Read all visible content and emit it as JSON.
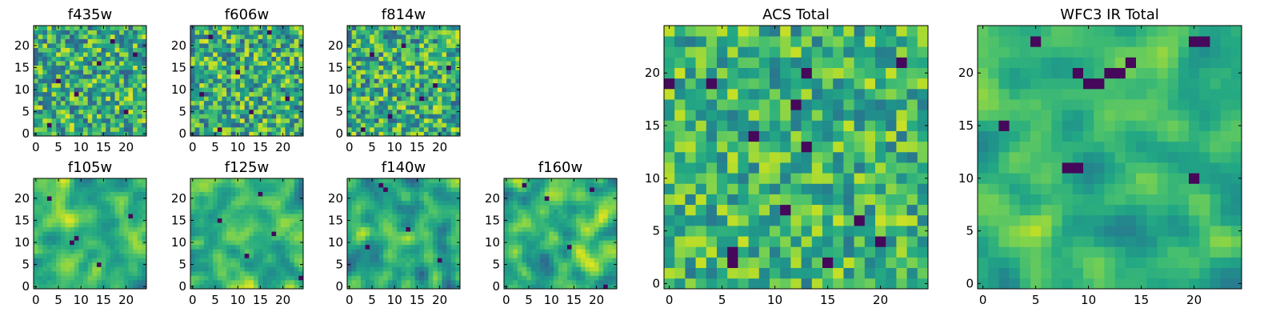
{
  "chart_data": [
    {
      "type": "heatmap",
      "title": "f435w",
      "grid_size": 25,
      "x_ticks": [
        0,
        5,
        10,
        15,
        20
      ],
      "y_ticks": [
        0,
        5,
        10,
        15,
        20
      ],
      "xlim": [
        0,
        25
      ],
      "ylim": [
        0,
        25
      ],
      "colormap": "viridis",
      "seed": 11,
      "smoothness": 0.05,
      "value_range": [
        0.3,
        0.95
      ],
      "dark_pixels": [
        [
          3,
          2
        ],
        [
          9,
          9
        ],
        [
          20,
          5
        ],
        [
          14,
          16
        ],
        [
          5,
          12
        ],
        [
          22,
          18
        ],
        [
          17,
          21
        ]
      ]
    },
    {
      "type": "heatmap",
      "title": "f606w",
      "grid_size": 25,
      "x_ticks": [
        0,
        5,
        10,
        15,
        20
      ],
      "y_ticks": [
        0,
        5,
        10,
        15,
        20
      ],
      "xlim": [
        0,
        25
      ],
      "ylim": [
        0,
        25
      ],
      "colormap": "viridis",
      "seed": 23,
      "smoothness": 0.05,
      "value_range": [
        0.3,
        0.95
      ],
      "dark_pixels": [
        [
          4,
          22
        ],
        [
          17,
          23
        ],
        [
          10,
          14
        ],
        [
          6,
          1
        ],
        [
          21,
          8
        ],
        [
          13,
          5
        ],
        [
          2,
          9
        ]
      ]
    },
    {
      "type": "heatmap",
      "title": "f814w",
      "grid_size": 25,
      "x_ticks": [
        0,
        5,
        10,
        15,
        20
      ],
      "y_ticks": [
        0,
        5,
        10,
        15,
        20
      ],
      "xlim": [
        0,
        25
      ],
      "ylim": [
        0,
        25
      ],
      "colormap": "viridis",
      "seed": 37,
      "smoothness": 0.05,
      "value_range": [
        0.3,
        0.95
      ],
      "dark_pixels": [
        [
          5,
          18
        ],
        [
          12,
          20
        ],
        [
          16,
          8
        ],
        [
          3,
          1
        ],
        [
          22,
          15
        ],
        [
          9,
          4
        ],
        [
          19,
          11
        ]
      ]
    },
    {
      "type": "heatmap",
      "title": "f105w",
      "grid_size": 25,
      "x_ticks": [
        0,
        5,
        10,
        15,
        20
      ],
      "y_ticks": [
        0,
        5,
        10,
        15,
        20
      ],
      "xlim": [
        0,
        25
      ],
      "ylim": [
        0,
        25
      ],
      "colormap": "viridis",
      "seed": 41,
      "smoothness": 0.45,
      "value_range": [
        0.35,
        0.95
      ],
      "dark_pixels": [
        [
          8,
          10
        ],
        [
          9,
          11
        ],
        [
          14,
          5
        ],
        [
          21,
          16
        ],
        [
          3,
          20
        ]
      ]
    },
    {
      "type": "heatmap",
      "title": "f125w",
      "grid_size": 25,
      "x_ticks": [
        0,
        5,
        10,
        15,
        20
      ],
      "y_ticks": [
        0,
        5,
        10,
        15,
        20
      ],
      "xlim": [
        0,
        25
      ],
      "ylim": [
        0,
        25
      ],
      "colormap": "viridis",
      "seed": 53,
      "smoothness": 0.45,
      "value_range": [
        0.35,
        0.95
      ],
      "dark_pixels": [
        [
          18,
          12
        ],
        [
          24,
          2
        ],
        [
          6,
          15
        ],
        [
          12,
          7
        ],
        [
          15,
          21
        ]
      ]
    },
    {
      "type": "heatmap",
      "title": "f140w",
      "grid_size": 25,
      "x_ticks": [
        0,
        5,
        10,
        15,
        20
      ],
      "y_ticks": [
        0,
        5,
        10,
        15,
        20
      ],
      "xlim": [
        0,
        25
      ],
      "ylim": [
        0,
        25
      ],
      "colormap": "viridis",
      "seed": 67,
      "smoothness": 0.5,
      "value_range": [
        0.3,
        0.9
      ],
      "dark_pixels": [
        [
          7,
          23
        ],
        [
          8,
          22
        ],
        [
          13,
          13
        ],
        [
          20,
          6
        ],
        [
          4,
          9
        ]
      ]
    },
    {
      "type": "heatmap",
      "title": "f160w",
      "grid_size": 25,
      "x_ticks": [
        0,
        5,
        10,
        15,
        20
      ],
      "y_ticks": [
        0,
        5,
        10,
        15,
        20
      ],
      "xlim": [
        0,
        25
      ],
      "ylim": [
        0,
        25
      ],
      "colormap": "viridis",
      "seed": 79,
      "smoothness": 0.5,
      "value_range": [
        0.35,
        0.95
      ],
      "dark_pixels": [
        [
          4,
          23
        ],
        [
          9,
          20
        ],
        [
          19,
          22
        ],
        [
          22,
          0
        ],
        [
          14,
          9
        ]
      ]
    },
    {
      "type": "heatmap",
      "title": "ACS Total",
      "grid_size": 25,
      "x_ticks": [
        0,
        5,
        10,
        15,
        20
      ],
      "y_ticks": [
        0,
        5,
        10,
        15,
        20
      ],
      "xlim": [
        0,
        25
      ],
      "ylim": [
        0,
        25
      ],
      "colormap": "viridis",
      "seed": 97,
      "smoothness": 0.1,
      "value_range": [
        0.4,
        0.92
      ],
      "dark_pixels": [
        [
          0,
          19
        ],
        [
          4,
          19
        ],
        [
          8,
          14
        ],
        [
          13,
          13
        ],
        [
          13,
          20
        ],
        [
          6,
          3
        ],
        [
          6,
          2
        ],
        [
          11,
          7
        ],
        [
          15,
          2
        ],
        [
          20,
          4
        ],
        [
          22,
          21
        ],
        [
          18,
          6
        ],
        [
          12,
          17
        ]
      ]
    },
    {
      "type": "heatmap",
      "title": "WFC3 IR Total",
      "grid_size": 25,
      "x_ticks": [
        0,
        5,
        10,
        15,
        20
      ],
      "y_ticks": [
        0,
        5,
        10,
        15,
        20
      ],
      "xlim": [
        0,
        25
      ],
      "ylim": [
        0,
        25
      ],
      "colormap": "viridis",
      "seed": 131,
      "smoothness": 0.55,
      "value_range": [
        0.42,
        0.9
      ],
      "dark_pixels": [
        [
          9,
          20
        ],
        [
          10,
          19
        ],
        [
          11,
          19
        ],
        [
          12,
          20
        ],
        [
          13,
          20
        ],
        [
          5,
          23
        ],
        [
          21,
          23
        ],
        [
          20,
          23
        ],
        [
          2,
          15
        ],
        [
          8,
          11
        ],
        [
          9,
          11
        ],
        [
          20,
          10
        ],
        [
          14,
          21
        ]
      ]
    }
  ]
}
